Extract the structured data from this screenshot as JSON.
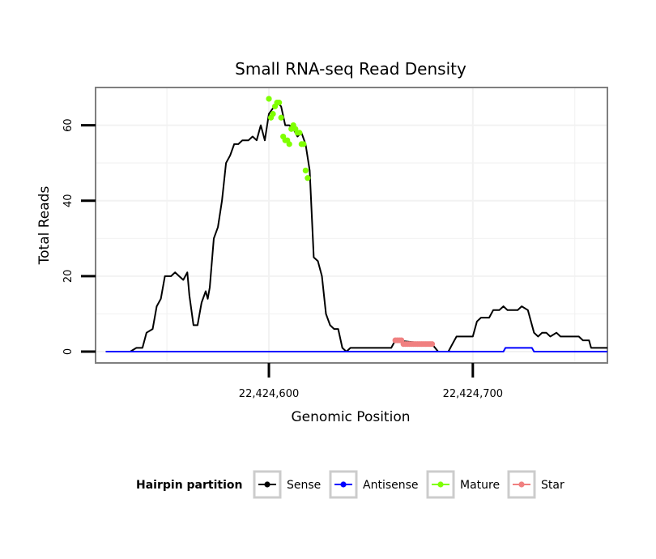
{
  "chart_data": {
    "type": "line",
    "title": "Small RNA-seq Read Density",
    "xlabel": "Genomic Position",
    "ylabel": "Total Reads",
    "xlim": [
      22424515,
      22424766
    ],
    "ylim": [
      -3,
      70
    ],
    "x_ticks": [
      22424600,
      22424700
    ],
    "x_tick_labels": [
      "22,424,600",
      "22,424,700"
    ],
    "y_ticks": [
      0,
      20,
      40,
      60
    ],
    "y_tick_labels": [
      "0",
      "20",
      "40",
      "60"
    ],
    "grid": true,
    "legend": {
      "title": "Hairpin partition",
      "position": "bottom",
      "entries": [
        {
          "label": "Sense",
          "color": "#000000"
        },
        {
          "label": "Antisense",
          "color": "#0000ff"
        },
        {
          "label": "Mature",
          "color": "#7fff00"
        },
        {
          "label": "Star",
          "color": "#f08080"
        }
      ]
    },
    "series": [
      {
        "name": "Sense",
        "color": "#000000",
        "style": "line",
        "points": [
          [
            22424520,
            0
          ],
          [
            22424532,
            0
          ],
          [
            22424535,
            1
          ],
          [
            22424538,
            1
          ],
          [
            22424540,
            5
          ],
          [
            22424543,
            6
          ],
          [
            22424545,
            12
          ],
          [
            22424547,
            14
          ],
          [
            22424549,
            20
          ],
          [
            22424552,
            20
          ],
          [
            22424554,
            21
          ],
          [
            22424556,
            20
          ],
          [
            22424558,
            19
          ],
          [
            22424560,
            21
          ],
          [
            22424561,
            15
          ],
          [
            22424563,
            7
          ],
          [
            22424565,
            7
          ],
          [
            22424567,
            13
          ],
          [
            22424569,
            16
          ],
          [
            22424570,
            14
          ],
          [
            22424571,
            17
          ],
          [
            22424573,
            30
          ],
          [
            22424575,
            33
          ],
          [
            22424577,
            40
          ],
          [
            22424579,
            50
          ],
          [
            22424581,
            52
          ],
          [
            22424583,
            55
          ],
          [
            22424585,
            55
          ],
          [
            22424587,
            56
          ],
          [
            22424590,
            56
          ],
          [
            22424592,
            57
          ],
          [
            22424594,
            56
          ],
          [
            22424596,
            60
          ],
          [
            22424598,
            56
          ],
          [
            22424600,
            63
          ],
          [
            22424604,
            66
          ],
          [
            22424606,
            65
          ],
          [
            22424608,
            60
          ],
          [
            22424610,
            60
          ],
          [
            22424612,
            59
          ],
          [
            22424614,
            57
          ],
          [
            22424616,
            58
          ],
          [
            22424618,
            55
          ],
          [
            22424620,
            48
          ],
          [
            22424622,
            25
          ],
          [
            22424624,
            24
          ],
          [
            22424626,
            20
          ],
          [
            22424628,
            10
          ],
          [
            22424630,
            7
          ],
          [
            22424632,
            6
          ],
          [
            22424634,
            6
          ],
          [
            22424636,
            1
          ],
          [
            22424638,
            0
          ],
          [
            22424640,
            1
          ],
          [
            22424660,
            1
          ],
          [
            22424662,
            3
          ],
          [
            22424680,
            2
          ],
          [
            22424683,
            0
          ],
          [
            22424688,
            0
          ],
          [
            22424690,
            2
          ],
          [
            22424692,
            4
          ],
          [
            22424700,
            4
          ],
          [
            22424702,
            8
          ],
          [
            22424704,
            9
          ],
          [
            22424708,
            9
          ],
          [
            22424710,
            11
          ],
          [
            22424713,
            11
          ],
          [
            22424715,
            12
          ],
          [
            22424717,
            11
          ],
          [
            22424720,
            11
          ],
          [
            22424722,
            11
          ],
          [
            22424724,
            12
          ],
          [
            22424727,
            11
          ],
          [
            22424730,
            5
          ],
          [
            22424732,
            4
          ],
          [
            22424734,
            5
          ],
          [
            22424736,
            5
          ],
          [
            22424738,
            4
          ],
          [
            22424741,
            5
          ],
          [
            22424743,
            4
          ],
          [
            22424750,
            4
          ],
          [
            22424752,
            4
          ],
          [
            22424754,
            3
          ],
          [
            22424757,
            3
          ],
          [
            22424758,
            1
          ],
          [
            22424766,
            1
          ]
        ]
      },
      {
        "name": "Antisense",
        "color": "#0000ff",
        "style": "line",
        "points": [
          [
            22424520,
            0
          ],
          [
            22424685,
            0
          ],
          [
            22424715,
            0
          ],
          [
            22424716,
            1
          ],
          [
            22424729,
            1
          ],
          [
            22424730,
            0
          ],
          [
            22424766,
            0
          ]
        ]
      },
      {
        "name": "Mature",
        "color": "#7fff00",
        "style": "points",
        "points": [
          [
            22424600,
            67
          ],
          [
            22424601,
            62
          ],
          [
            22424602,
            63
          ],
          [
            22424603,
            65
          ],
          [
            22424604,
            66
          ],
          [
            22424605,
            66
          ],
          [
            22424606,
            62
          ],
          [
            22424607,
            57
          ],
          [
            22424608,
            56
          ],
          [
            22424609,
            56
          ],
          [
            22424610,
            55
          ],
          [
            22424611,
            59
          ],
          [
            22424612,
            60
          ],
          [
            22424613,
            59
          ],
          [
            22424614,
            58
          ],
          [
            22424615,
            58
          ],
          [
            22424616,
            55
          ],
          [
            22424617,
            55
          ],
          [
            22424618,
            48
          ],
          [
            22424619,
            46
          ]
        ]
      },
      {
        "name": "Star",
        "color": "#f08080",
        "style": "points",
        "points": [
          [
            22424662,
            3
          ],
          [
            22424663,
            3
          ],
          [
            22424664,
            3
          ],
          [
            22424665,
            3
          ],
          [
            22424666,
            2
          ],
          [
            22424667,
            2
          ],
          [
            22424668,
            2
          ],
          [
            22424669,
            2
          ],
          [
            22424670,
            2
          ],
          [
            22424671,
            2
          ],
          [
            22424672,
            2
          ],
          [
            22424673,
            2
          ],
          [
            22424674,
            2
          ],
          [
            22424675,
            2
          ],
          [
            22424676,
            2
          ],
          [
            22424677,
            2
          ],
          [
            22424678,
            2
          ],
          [
            22424679,
            2
          ],
          [
            22424680,
            2
          ]
        ]
      }
    ]
  }
}
